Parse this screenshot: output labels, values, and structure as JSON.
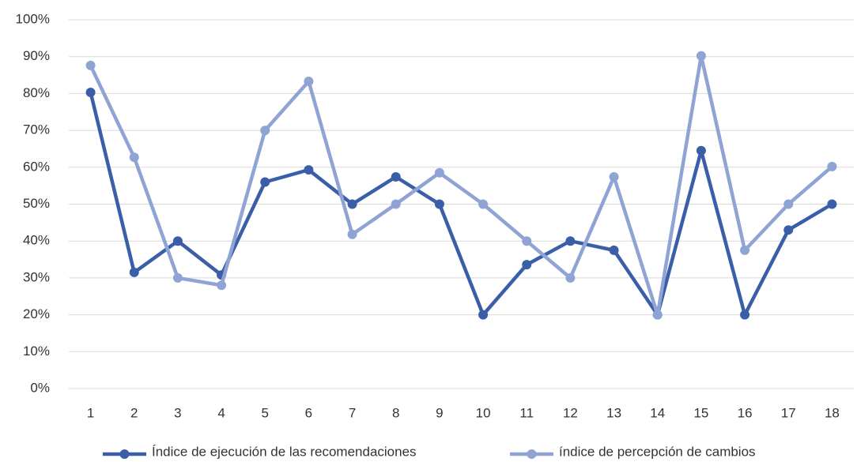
{
  "chart_data": {
    "type": "line",
    "categories": [
      "1",
      "2",
      "3",
      "4",
      "5",
      "6",
      "7",
      "8",
      "9",
      "10",
      "11",
      "12",
      "13",
      "14",
      "15",
      "16",
      "17",
      "18"
    ],
    "series": [
      {
        "name": "Índice de ejecución de las recomendaciones",
        "color": "#3a5fa8",
        "values": [
          80.3,
          31.5,
          40,
          30.8,
          56,
          59.3,
          50,
          57.4,
          50,
          20,
          33.6,
          40,
          37.5,
          20,
          64.5,
          20,
          43,
          50
        ]
      },
      {
        "name": "índice de percepción de cambios",
        "color": "#8fa3d4",
        "values": [
          87.6,
          62.7,
          30,
          28,
          70,
          83.3,
          41.8,
          50,
          58.5,
          50,
          40,
          30,
          57.4,
          20,
          90.2,
          37.5,
          50,
          60.2
        ]
      }
    ],
    "ylim": [
      0,
      100
    ],
    "yticks": [
      {
        "value": 0,
        "label": "0%"
      },
      {
        "value": 10,
        "label": "10%"
      },
      {
        "value": 20,
        "label": "20%"
      },
      {
        "value": 30,
        "label": "30%"
      },
      {
        "value": 40,
        "label": "40%"
      },
      {
        "value": 50,
        "label": "50%"
      },
      {
        "value": 60,
        "label": "60%"
      },
      {
        "value": 70,
        "label": "70%"
      },
      {
        "value": 80,
        "label": "80%"
      },
      {
        "value": 90,
        "label": "90%"
      },
      {
        "value": 100,
        "label": "100%"
      }
    ],
    "grid": true,
    "legend": "bottom"
  }
}
